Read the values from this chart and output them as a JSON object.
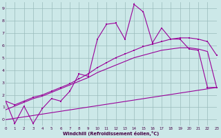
{
  "xlabel": "Windchill (Refroidissement éolien,°C)",
  "bg_color": "#cce8e8",
  "line_color": "#990099",
  "grid_color": "#99bbbb",
  "xlim": [
    0,
    23
  ],
  "ylim": [
    -0.5,
    9.5
  ],
  "xticks": [
    0,
    1,
    2,
    3,
    4,
    5,
    6,
    7,
    8,
    9,
    10,
    11,
    12,
    13,
    14,
    15,
    16,
    17,
    18,
    19,
    20,
    21,
    22,
    23
  ],
  "yticks": [
    0,
    1,
    2,
    3,
    4,
    5,
    6,
    7,
    8,
    9
  ],
  "spiky_x": [
    0,
    1,
    2,
    3,
    4,
    5,
    6,
    7,
    8,
    9,
    10,
    11,
    12,
    13,
    14,
    15,
    16,
    17,
    18,
    19,
    20,
    21,
    22,
    23
  ],
  "spiky_y": [
    1.5,
    -0.3,
    1.1,
    -0.3,
    0.9,
    1.7,
    1.5,
    2.3,
    3.7,
    3.5,
    6.5,
    7.7,
    7.8,
    6.5,
    9.3,
    8.7,
    6.2,
    7.4,
    6.5,
    6.5,
    5.7,
    5.6,
    2.6,
    2.6
  ],
  "upper_curve_x": [
    0,
    1,
    2,
    3,
    4,
    5,
    6,
    7,
    8,
    9,
    10,
    11,
    12,
    13,
    14,
    15,
    16,
    17,
    18,
    19,
    20,
    21,
    22,
    23
  ],
  "upper_curve_y": [
    1.5,
    1.2,
    1.5,
    1.8,
    2.0,
    2.3,
    2.6,
    2.9,
    3.3,
    3.7,
    4.2,
    4.6,
    5.0,
    5.3,
    5.6,
    5.9,
    6.1,
    6.3,
    6.5,
    6.6,
    6.6,
    6.5,
    6.3,
    5.2
  ],
  "lower_curve_x": [
    0,
    23
  ],
  "lower_curve_y": [
    0.0,
    2.6
  ],
  "mid_curve_x": [
    0,
    1,
    2,
    3,
    4,
    5,
    6,
    7,
    8,
    9,
    10,
    11,
    12,
    13,
    14,
    15,
    16,
    17,
    18,
    19,
    20,
    21,
    22,
    23
  ],
  "mid_curve_y": [
    0.8,
    1.1,
    1.4,
    1.7,
    1.9,
    2.2,
    2.5,
    2.8,
    3.1,
    3.4,
    3.8,
    4.1,
    4.4,
    4.7,
    5.0,
    5.2,
    5.4,
    5.6,
    5.7,
    5.8,
    5.8,
    5.7,
    5.5,
    2.6
  ]
}
